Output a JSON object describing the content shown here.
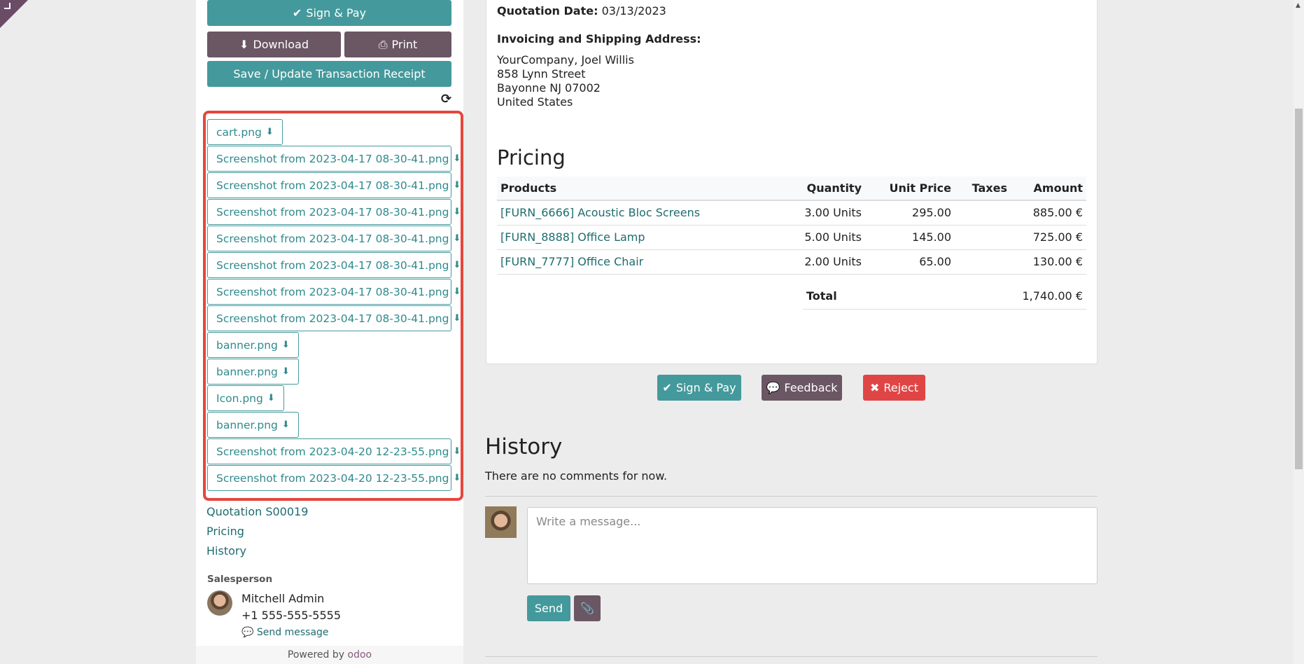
{
  "sidebar": {
    "sign_pay": "Sign & Pay",
    "download": "Download",
    "print": "Print",
    "save_receipt": "Save / Update Transaction Receipt",
    "attachments": [
      "cart.png",
      "Screenshot from 2023-04-17 08-30-41.png",
      "Screenshot from 2023-04-17 08-30-41.png",
      "Screenshot from 2023-04-17 08-30-41.png",
      "Screenshot from 2023-04-17 08-30-41.png",
      "Screenshot from 2023-04-17 08-30-41.png",
      "Screenshot from 2023-04-17 08-30-41.png",
      "Screenshot from 2023-04-17 08-30-41.png",
      "banner.png",
      "banner.png",
      "Icon.png",
      "banner.png",
      "Screenshot from 2023-04-20 12-23-55.png",
      "Screenshot from 2023-04-20 12-23-55.png"
    ],
    "nav": [
      "Quotation S00019",
      "Pricing",
      "History"
    ],
    "salesperson_label": "Salesperson",
    "salesperson_name": "Mitchell Admin",
    "salesperson_phone": "+1 555-555-5555",
    "send_message": "Send message",
    "powered_by": "Powered by",
    "brand": "odoo"
  },
  "quote": {
    "date_label": "Quotation Date:",
    "date": "03/13/2023",
    "address_label": "Invoicing and Shipping Address:",
    "address": [
      "YourCompany, Joel Willis",
      "858 Lynn Street",
      "Bayonne NJ 07002",
      "United States"
    ],
    "pricing_title": "Pricing",
    "columns": [
      "Products",
      "Quantity",
      "Unit Price",
      "Taxes",
      "Amount"
    ],
    "rows": [
      {
        "product": "[FURN_6666] Acoustic Bloc Screens",
        "qty": "3.00 Units",
        "price": "295.00",
        "taxes": "",
        "amount": "885.00 €"
      },
      {
        "product": "[FURN_8888] Office Lamp",
        "qty": "5.00 Units",
        "price": "145.00",
        "taxes": "",
        "amount": "725.00 €"
      },
      {
        "product": "[FURN_7777] Office Chair",
        "qty": "2.00 Units",
        "price": "65.00",
        "taxes": "",
        "amount": "130.00 €"
      }
    ],
    "total_label": "Total",
    "total": "1,740.00 €"
  },
  "actions": {
    "sign_pay": "Sign & Pay",
    "feedback": "Feedback",
    "reject": "Reject"
  },
  "history": {
    "title": "History",
    "empty": "There are no comments for now.",
    "placeholder": "Write a message...",
    "send": "Send"
  },
  "colors": {
    "primary": "#44999c",
    "secondary": "#6b5664",
    "danger": "#e04545",
    "highlight": "#e5473d"
  }
}
